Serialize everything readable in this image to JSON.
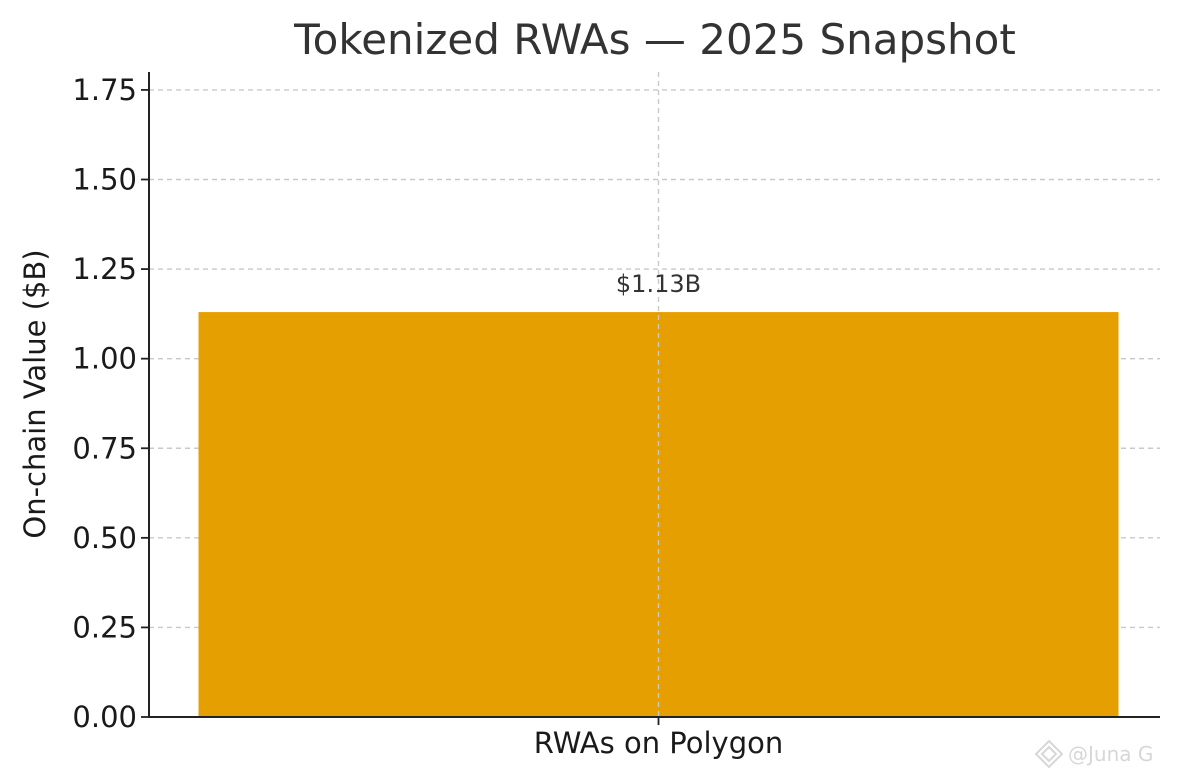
{
  "chart_data": {
    "type": "bar",
    "title": "Tokenized RWAs — 2025 Snapshot",
    "xlabel": "",
    "ylabel": "On-chain Value ($B)",
    "categories": [
      "RWAs on Polygon"
    ],
    "values": [
      1.13
    ],
    "data_labels": [
      "$1.13B"
    ],
    "ylim": [
      0,
      1.8
    ],
    "yticks": [
      0,
      0.25,
      0.5,
      0.75,
      1.0,
      1.25,
      1.5,
      1.75
    ],
    "ytick_labels": [
      "0.00",
      "0.25",
      "0.50",
      "0.75",
      "1.00",
      "1.25",
      "1.50",
      "1.75"
    ],
    "grid": true,
    "bar_color": "#E69F00"
  },
  "watermark": {
    "text": "@Juna G"
  }
}
